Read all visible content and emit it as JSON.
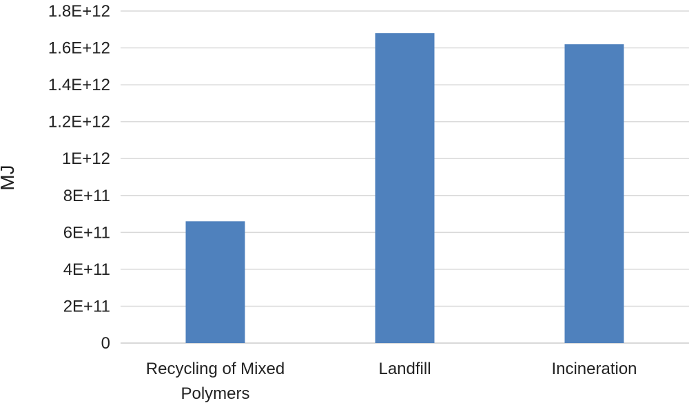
{
  "chart_data": {
    "type": "bar",
    "title": "",
    "xlabel": "",
    "ylabel": "MJ",
    "categories": [
      [
        "Recycling of Mixed",
        "Polymers"
      ],
      [
        "Landfill"
      ],
      [
        "Incineration"
      ]
    ],
    "values": [
      660000000000.0,
      1680000000000.0,
      1620000000000.0
    ],
    "ylim": [
      0,
      1800000000000.0
    ],
    "yticks": [
      0,
      200000000000.0,
      400000000000.0,
      600000000000.0,
      800000000000.0,
      1000000000000.0,
      1200000000000.0,
      1400000000000.0,
      1600000000000.0,
      1800000000000.0
    ],
    "ytick_labels": [
      "0",
      "2E+11",
      "4E+11",
      "6E+11",
      "8E+11",
      "1E+12",
      "1.2E+12",
      "1.4E+12",
      "1.6E+12",
      "1.8E+12"
    ],
    "grid": true,
    "legend": "none",
    "colors": {
      "bar": "#4F81BD",
      "grid": "#D9D9D9",
      "text": "#222222"
    }
  }
}
